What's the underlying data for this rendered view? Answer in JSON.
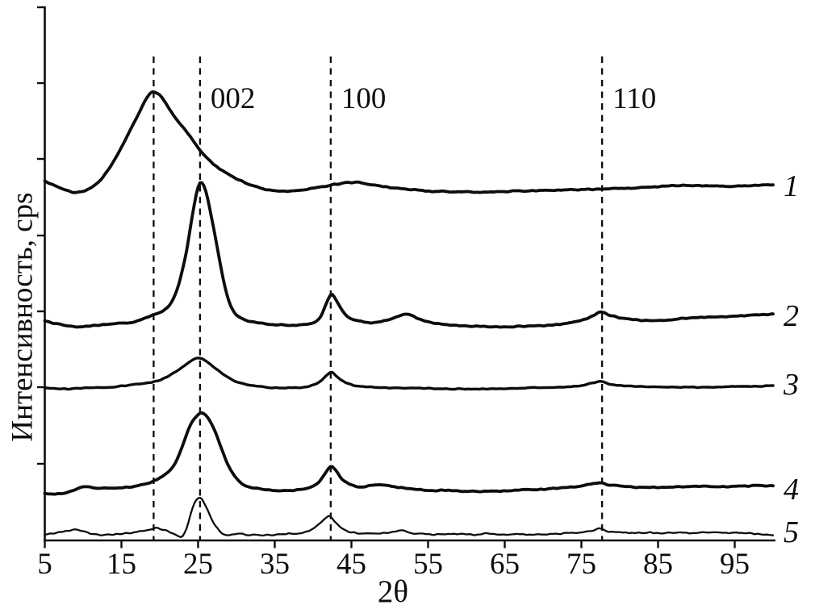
{
  "figure": {
    "background": "#ffffff",
    "ink_color": "#0d0d0d"
  },
  "chart_data": {
    "type": "line",
    "title": "",
    "xlabel": "2θ",
    "ylabel": "Интенсивность, cps",
    "x_range": [
      5,
      100
    ],
    "x_ticks": [
      5,
      15,
      25,
      35,
      45,
      55,
      65,
      75,
      85,
      95
    ],
    "y_axis": {
      "labeled": false,
      "unlabeled_tick_count": 7,
      "units": "arbitrary intensity, cps"
    },
    "grid": false,
    "legend_position": "right-edge curve numbers",
    "reference_lines": [
      {
        "two_theta": 19.2,
        "label": ""
      },
      {
        "two_theta": 25.25,
        "label": "002"
      },
      {
        "two_theta": 42.3,
        "label": "100"
      },
      {
        "two_theta": 77.7,
        "label": "110"
      }
    ],
    "series": [
      {
        "name": "1",
        "points": [
          [
            5,
            445
          ],
          [
            6.5,
            439
          ],
          [
            8.5,
            432
          ],
          [
            10,
            433
          ],
          [
            12,
            444
          ],
          [
            14,
            470
          ],
          [
            16,
            506
          ],
          [
            17.5,
            534
          ],
          [
            18.6,
            553
          ],
          [
            19.3,
            556
          ],
          [
            20.5,
            546
          ],
          [
            22,
            524
          ],
          [
            23.5,
            507
          ],
          [
            25,
            487
          ],
          [
            26.5,
            471
          ],
          [
            28,
            459
          ],
          [
            29.5,
            451
          ],
          [
            31,
            444
          ],
          [
            32.5,
            439
          ],
          [
            34,
            435
          ],
          [
            36,
            433
          ],
          [
            38,
            434
          ],
          [
            40,
            437
          ],
          [
            42,
            440
          ],
          [
            44,
            443
          ],
          [
            45.5,
            444
          ],
          [
            47,
            442
          ],
          [
            49,
            439
          ],
          [
            51,
            437
          ],
          [
            54,
            434
          ],
          [
            58,
            432
          ],
          [
            62,
            432
          ],
          [
            66,
            433
          ],
          [
            70,
            434
          ],
          [
            74,
            435
          ],
          [
            78,
            436
          ],
          [
            82,
            437
          ],
          [
            85,
            439
          ],
          [
            88,
            440
          ],
          [
            91,
            440
          ],
          [
            94,
            439
          ],
          [
            97,
            440
          ],
          [
            100,
            441
          ]
        ]
      },
      {
        "name": "2",
        "points": [
          [
            5,
            272
          ],
          [
            7,
            268
          ],
          [
            9,
            265
          ],
          [
            11,
            266
          ],
          [
            13,
            268
          ],
          [
            15,
            269
          ],
          [
            17,
            272
          ],
          [
            19,
            279
          ],
          [
            20.5,
            285
          ],
          [
            21.5,
            295
          ],
          [
            22.5,
            318
          ],
          [
            23.5,
            360
          ],
          [
            24.3,
            406
          ],
          [
            25,
            438
          ],
          [
            25.4,
            444
          ],
          [
            26,
            433
          ],
          [
            26.8,
            398
          ],
          [
            27.7,
            352
          ],
          [
            28.6,
            310
          ],
          [
            29.5,
            286
          ],
          [
            30.5,
            276
          ],
          [
            32,
            271
          ],
          [
            34,
            268
          ],
          [
            36,
            267
          ],
          [
            38,
            267
          ],
          [
            40,
            270
          ],
          [
            41,
            278
          ],
          [
            41.8,
            295
          ],
          [
            42.4,
            305
          ],
          [
            43,
            298
          ],
          [
            43.8,
            285
          ],
          [
            44.8,
            276
          ],
          [
            46,
            272
          ],
          [
            48,
            270
          ],
          [
            50,
            274
          ],
          [
            51.5,
            279
          ],
          [
            52.5,
            280
          ],
          [
            53.5,
            276
          ],
          [
            55,
            271
          ],
          [
            57,
            268
          ],
          [
            60,
            266
          ],
          [
            63,
            265
          ],
          [
            66,
            265
          ],
          [
            69,
            266
          ],
          [
            72,
            268
          ],
          [
            74,
            271
          ],
          [
            75.5,
            274
          ],
          [
            76.8,
            280
          ],
          [
            77.6,
            283
          ],
          [
            78.5,
            280
          ],
          [
            80,
            276
          ],
          [
            82,
            274
          ],
          [
            84,
            273
          ],
          [
            86,
            273
          ],
          [
            88,
            275
          ],
          [
            90,
            276
          ],
          [
            92,
            277
          ],
          [
            95,
            278
          ],
          [
            97,
            279
          ],
          [
            100,
            281
          ]
        ]
      },
      {
        "name": "3",
        "points": [
          [
            5,
            189
          ],
          [
            8,
            188
          ],
          [
            11,
            189
          ],
          [
            14,
            190
          ],
          [
            17,
            194
          ],
          [
            19,
            196
          ],
          [
            21,
            203
          ],
          [
            22.5,
            212
          ],
          [
            24,
            222
          ],
          [
            24.8,
            226
          ],
          [
            25.5,
            225
          ],
          [
            26.5,
            219
          ],
          [
            28,
            208
          ],
          [
            29.5,
            199
          ],
          [
            31,
            194
          ],
          [
            33,
            191
          ],
          [
            35,
            189
          ],
          [
            37,
            189
          ],
          [
            39,
            190
          ],
          [
            40.8,
            196
          ],
          [
            41.9,
            206
          ],
          [
            42.4,
            209
          ],
          [
            43,
            204
          ],
          [
            44,
            197
          ],
          [
            45.5,
            192
          ],
          [
            48,
            190
          ],
          [
            51,
            189
          ],
          [
            54,
            189
          ],
          [
            57,
            188
          ],
          [
            60,
            188
          ],
          [
            64,
            188
          ],
          [
            68,
            189
          ],
          [
            72,
            190
          ],
          [
            75,
            192
          ],
          [
            76.8,
            196
          ],
          [
            77.5,
            197
          ],
          [
            78.5,
            194
          ],
          [
            80,
            192
          ],
          [
            83,
            191
          ],
          [
            86,
            190
          ],
          [
            89,
            190
          ],
          [
            92,
            190
          ],
          [
            95,
            191
          ],
          [
            98,
            191
          ],
          [
            100,
            192
          ]
        ]
      },
      {
        "name": "4",
        "points": [
          [
            5,
            58
          ],
          [
            7,
            58
          ],
          [
            8.5,
            61
          ],
          [
            10,
            66
          ],
          [
            12,
            65
          ],
          [
            14,
            65
          ],
          [
            16,
            66
          ],
          [
            18,
            70
          ],
          [
            19,
            73
          ],
          [
            20,
            78
          ],
          [
            21,
            84
          ],
          [
            22,
            96
          ],
          [
            23,
            118
          ],
          [
            24,
            143
          ],
          [
            25,
            156
          ],
          [
            25.6,
            158
          ],
          [
            26.3,
            152
          ],
          [
            27.2,
            135
          ],
          [
            28.2,
            110
          ],
          [
            29.2,
            88
          ],
          [
            30.2,
            75
          ],
          [
            31.5,
            67
          ],
          [
            33,
            64
          ],
          [
            35,
            62
          ],
          [
            37,
            62
          ],
          [
            39,
            64
          ],
          [
            40.5,
            70
          ],
          [
            41.5,
            82
          ],
          [
            42.3,
            92
          ],
          [
            42.9,
            87
          ],
          [
            43.7,
            77
          ],
          [
            44.7,
            70
          ],
          [
            46,
            66
          ],
          [
            47.5,
            68
          ],
          [
            49,
            69
          ],
          [
            50.5,
            67
          ],
          [
            52,
            65
          ],
          [
            54,
            63
          ],
          [
            57,
            62
          ],
          [
            60,
            61
          ],
          [
            63,
            61
          ],
          [
            66,
            62
          ],
          [
            69,
            63
          ],
          [
            72,
            65
          ],
          [
            74.5,
            67
          ],
          [
            76.3,
            70
          ],
          [
            77.5,
            71
          ],
          [
            78.7,
            69
          ],
          [
            80.5,
            67
          ],
          [
            83,
            66
          ],
          [
            86,
            66
          ],
          [
            89,
            67
          ],
          [
            92,
            67
          ],
          [
            95,
            67
          ],
          [
            98,
            68
          ],
          [
            100,
            68
          ]
        ]
      },
      {
        "name": "5",
        "points": [
          [
            5,
            7
          ],
          [
            6.5,
            9
          ],
          [
            8,
            12
          ],
          [
            9,
            14
          ],
          [
            10,
            11
          ],
          [
            11.5,
            8
          ],
          [
            13,
            7
          ],
          [
            15,
            8
          ],
          [
            17,
            10
          ],
          [
            18.5,
            13
          ],
          [
            19.5,
            15
          ],
          [
            20.5,
            13
          ],
          [
            21.5,
            10
          ],
          [
            22.3,
            6
          ],
          [
            22.9,
            4
          ],
          [
            23.5,
            15
          ],
          [
            24,
            31
          ],
          [
            24.5,
            46
          ],
          [
            25,
            53
          ],
          [
            25.5,
            51
          ],
          [
            26,
            42
          ],
          [
            26.6,
            30
          ],
          [
            27.3,
            18
          ],
          [
            28.2,
            9
          ],
          [
            29,
            7
          ],
          [
            30.5,
            8
          ],
          [
            32,
            7
          ],
          [
            34,
            7
          ],
          [
            36,
            8
          ],
          [
            38,
            9
          ],
          [
            39.5,
            12
          ],
          [
            40.8,
            20
          ],
          [
            41.7,
            28
          ],
          [
            42.2,
            30
          ],
          [
            42.8,
            24
          ],
          [
            43.6,
            16
          ],
          [
            44.6,
            11
          ],
          [
            46,
            9
          ],
          [
            48,
            8
          ],
          [
            50,
            10
          ],
          [
            51.5,
            12
          ],
          [
            53,
            9
          ],
          [
            55,
            8
          ],
          [
            57,
            7
          ],
          [
            59,
            8
          ],
          [
            61,
            7
          ],
          [
            63,
            8
          ],
          [
            65,
            7
          ],
          [
            67,
            8
          ],
          [
            69,
            7
          ],
          [
            71,
            8
          ],
          [
            73,
            9
          ],
          [
            75,
            10
          ],
          [
            76.5,
            12
          ],
          [
            77.4,
            15
          ],
          [
            78.3,
            12
          ],
          [
            80,
            10
          ],
          [
            82,
            9
          ],
          [
            84,
            10
          ],
          [
            86,
            9
          ],
          [
            88,
            10
          ],
          [
            90,
            9
          ],
          [
            92,
            10
          ],
          [
            94,
            9
          ],
          [
            96,
            10
          ],
          [
            98,
            8
          ],
          [
            100,
            6
          ]
        ]
      }
    ]
  }
}
